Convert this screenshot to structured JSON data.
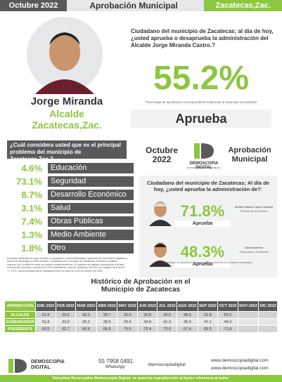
{
  "header": {
    "date": "Octubre 2022",
    "title": "Aprobación Municipal",
    "place": "Zacatecas,Zac."
  },
  "profile": {
    "name": "Jorge Miranda",
    "role": "Alcalde",
    "city": "Zacatecas,Zac."
  },
  "approval": {
    "question": "Ciudadano del municipio de Zacatecas; al día de hoy, ¿usted aprueba o desaprueba la administración del Alcalde Jorge Miranda Castro.?",
    "value": "55.2%",
    "note": "*Porcentaje de aprobación correspondiente solamente al municipio encuestado*",
    "label": "Aprueba"
  },
  "problems": {
    "question": "¿Cuál considera usted que es el principal problema del municipio de Zacatecas,Zac.?",
    "items": [
      [
        "4.6%",
        "Educación"
      ],
      [
        "73.1%",
        "Seguridad"
      ],
      [
        "8.7%",
        "Desarrollo Económico"
      ],
      [
        "3.1%",
        "Salud"
      ],
      [
        "7.4%",
        "Obras Públicas"
      ],
      [
        "1.3%",
        "Medio Ambiente"
      ],
      [
        "1.8%",
        "Otro"
      ]
    ],
    "methodology": "Encuesta realizada con rigor científico y estadístico, autoadministrada y aplicada con formularios digitales a través de WhatsApp y redes sociales. Ciudadanos del municipio de Zacatecas, hombres y mujeres mayores de 18 años de todos los niveles socioeconómicos. El universo de estudio corresponde a la lista nominal del municipio; muestra de 1,000 ciudadanos, nivel de confianza del 95% con margen de error de +/- 3.9%. Las encuestas fueron realizadas entre los días 01 al 30 de octubre de 2022."
  },
  "brand": {
    "date": "Octubre 2022",
    "logo": "DEMOSCOPIA DIGITAL",
    "logo_sub": "ESTUDIOS DE OPINIÓN PÚBLICA",
    "title": "Aprobación Municipal"
  },
  "others": {
    "question": "Ciudadano del municipio de Zacatecas; Al día de hoy, ¿usted aprueba la administración de?:",
    "people": [
      {
        "value": "71.8%",
        "label": "Aprueba",
        "name": "Andrés Manuel López Obrador",
        "role": "Presidente de México"
      },
      {
        "value": "48.3%",
        "label": "Aprueba",
        "name": "David Monreal",
        "role": "Gobernador Zacatecas"
      }
    ],
    "note": "*Porcentaje de aprobación correspondiente solamente al municipio encuestado*"
  },
  "history": {
    "title": "Histórico de Aprobación en el Municipio de Zacatecas",
    "columns": [
      "APROBACIÓN",
      "ENE 2022",
      "FEB 2022",
      "MAR 2022",
      "ABR 2022",
      "MAY 2022",
      "JUN 2022",
      "JUL 2022",
      "AGO 2022",
      "SEP 2022",
      "OCT 2022",
      "NOV 2022",
      "DIC 2022"
    ],
    "rows": [
      [
        "ALCALDE",
        "31.8",
        "29.6",
        "30.2",
        "28.7",
        "30.9",
        "30.8",
        "43.5",
        "48.6",
        "52.8",
        "55.2"
      ],
      [
        "GOBERNADOR",
        "31.8",
        "33.6",
        "30.2",
        "28.5",
        "29.4",
        "34.8",
        "41.3",
        "45.9",
        "47.1",
        "48.3"
      ],
      [
        "PRESIDENTE",
        "63.5",
        "62.7",
        "60.6",
        "66.8",
        "70.3",
        "72.4",
        "73.6",
        "67.4",
        "69.5",
        "71.8"
      ]
    ]
  },
  "footer": {
    "logo": "DEMOSCOPIA DIGITAL",
    "phone": "55 7958 0491",
    "whatsapp": "WhatsApp",
    "social": "/demoscopiadigital",
    "web1": "www.demoscopiadigital.com",
    "web2": "www.demoscopiadigital.com",
    "rights": "Derechos Reservados Demoscopia Digital, se autoriza reproducción al hacer referencia al autor."
  }
}
